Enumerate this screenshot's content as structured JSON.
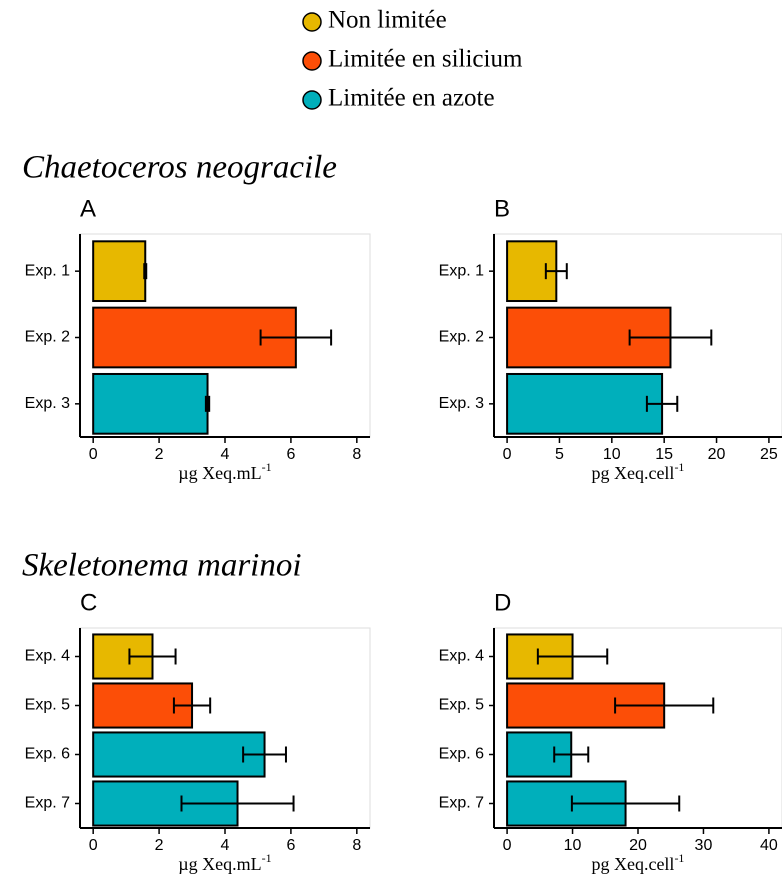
{
  "legend": [
    {
      "name": "Non limitée",
      "color": "#E7B800"
    },
    {
      "name": "Limitée en silicium",
      "color": "#FC4E07"
    },
    {
      "name": "Limitée en azote",
      "color": "#00AFBB"
    }
  ],
  "sections": [
    {
      "title": "Chaetoceros neogracile"
    },
    {
      "title": "Skeletonema marinoi"
    }
  ],
  "chart_data": [
    {
      "type": "hbar",
      "panel": "A",
      "categories": [
        "Exp. 1",
        "Exp. 2",
        "Exp. 3"
      ],
      "values": [
        1.58,
        6.15,
        3.47
      ],
      "errors": [
        0.03,
        1.07,
        0.05
      ],
      "colors": [
        "#E7B800",
        "#FC4E07",
        "#00AFBB"
      ],
      "xlim": [
        -0.4,
        8.4
      ],
      "xticks": [
        0,
        2,
        4,
        6,
        8
      ],
      "xlabel": "µg Xeq.mL",
      "xlabel_sup": "-1"
    },
    {
      "type": "hbar",
      "panel": "B",
      "categories": [
        "Exp. 1",
        "Exp. 2",
        "Exp. 3"
      ],
      "values": [
        4.7,
        15.6,
        14.8
      ],
      "errors": [
        1.0,
        3.9,
        1.45
      ],
      "colors": [
        "#E7B800",
        "#FC4E07",
        "#00AFBB"
      ],
      "xlim": [
        -1.25,
        26.25
      ],
      "xticks": [
        0,
        5,
        10,
        15,
        20,
        25
      ],
      "xlabel": "pg Xeq.cell",
      "xlabel_sup": "-1"
    },
    {
      "type": "hbar",
      "panel": "C",
      "categories": [
        "Exp. 4",
        "Exp. 5",
        "Exp. 6",
        "Exp. 7"
      ],
      "values": [
        1.8,
        3.0,
        5.2,
        4.38
      ],
      "errors": [
        0.7,
        0.55,
        0.65,
        1.7
      ],
      "colors": [
        "#E7B800",
        "#FC4E07",
        "#00AFBB",
        "#00AFBB"
      ],
      "xlim": [
        -0.4,
        8.4
      ],
      "xticks": [
        0,
        2,
        4,
        6,
        8
      ],
      "xlabel": "µg Xeq.mL",
      "xlabel_sup": "-1"
    },
    {
      "type": "hbar",
      "panel": "D",
      "categories": [
        "Exp. 4",
        "Exp. 5",
        "Exp. 6",
        "Exp. 7"
      ],
      "values": [
        10,
        24,
        9.8,
        18.1
      ],
      "errors": [
        5.3,
        7.5,
        2.6,
        8.2
      ],
      "colors": [
        "#E7B800",
        "#FC4E07",
        "#00AFBB",
        "#00AFBB"
      ],
      "xlim": [
        -2,
        42
      ],
      "xticks": [
        0,
        10,
        20,
        30,
        40
      ],
      "xlabel": "pg Xeq.cell",
      "xlabel_sup": "-1"
    }
  ]
}
